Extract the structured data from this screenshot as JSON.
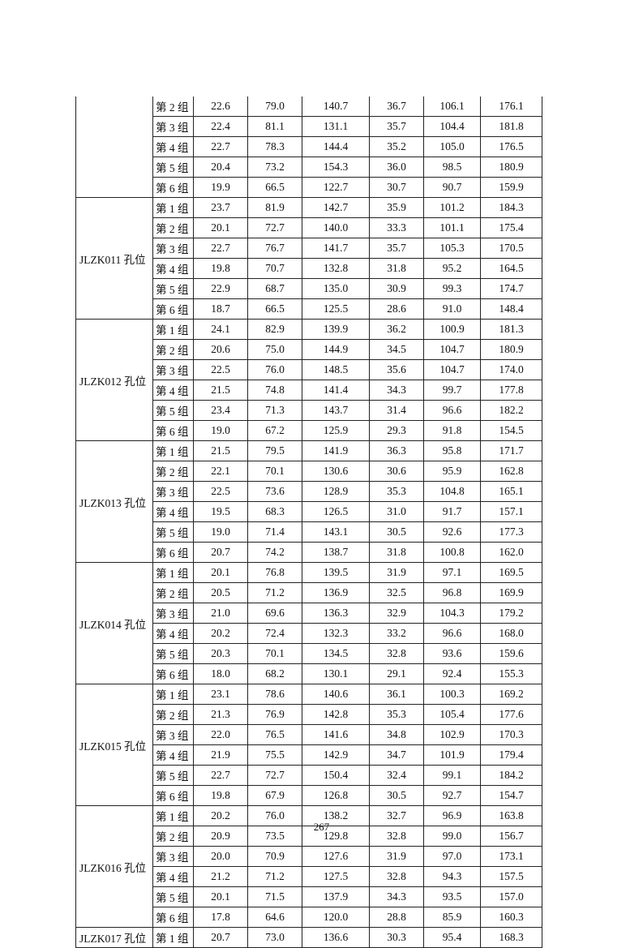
{
  "columns_visible": false,
  "groups": [
    {
      "hole": "",
      "rows": [
        [
          "第 2 组",
          "22.6",
          "79.0",
          "140.7",
          "36.7",
          "106.1",
          "176.1"
        ],
        [
          "第 3 组",
          "22.4",
          "81.1",
          "131.1",
          "35.7",
          "104.4",
          "181.8"
        ],
        [
          "第 4 组",
          "22.7",
          "78.3",
          "144.4",
          "35.2",
          "105.0",
          "176.5"
        ],
        [
          "第 5 组",
          "20.4",
          "73.2",
          "154.3",
          "36.0",
          "98.5",
          "180.9"
        ],
        [
          "第 6 组",
          "19.9",
          "66.5",
          "122.7",
          "30.7",
          "90.7",
          "159.9"
        ]
      ]
    },
    {
      "hole": "JLZK011 孔位",
      "rows": [
        [
          "第 1 组",
          "23.7",
          "81.9",
          "142.7",
          "35.9",
          "101.2",
          "184.3"
        ],
        [
          "第 2 组",
          "20.1",
          "72.7",
          "140.0",
          "33.3",
          "101.1",
          "175.4"
        ],
        [
          "第 3 组",
          "22.7",
          "76.7",
          "141.7",
          "35.7",
          "105.3",
          "170.5"
        ],
        [
          "第 4 组",
          "19.8",
          "70.7",
          "132.8",
          "31.8",
          "95.2",
          "164.5"
        ],
        [
          "第 5 组",
          "22.9",
          "68.7",
          "135.0",
          "30.9",
          "99.3",
          "174.7"
        ],
        [
          "第 6 组",
          "18.7",
          "66.5",
          "125.5",
          "28.6",
          "91.0",
          "148.4"
        ]
      ]
    },
    {
      "hole": "JLZK012 孔位",
      "rows": [
        [
          "第 1 组",
          "24.1",
          "82.9",
          "139.9",
          "36.2",
          "100.9",
          "181.3"
        ],
        [
          "第 2 组",
          "20.6",
          "75.0",
          "144.9",
          "34.5",
          "104.7",
          "180.9"
        ],
        [
          "第 3 组",
          "22.5",
          "76.0",
          "148.5",
          "35.6",
          "104.7",
          "174.0"
        ],
        [
          "第 4 组",
          "21.5",
          "74.8",
          "141.4",
          "34.3",
          "99.7",
          "177.8"
        ],
        [
          "第 5 组",
          "23.4",
          "71.3",
          "143.7",
          "31.4",
          "96.6",
          "182.2"
        ],
        [
          "第 6 组",
          "19.0",
          "67.2",
          "125.9",
          "29.3",
          "91.8",
          "154.5"
        ]
      ]
    },
    {
      "hole": "JLZK013 孔位",
      "rows": [
        [
          "第 1 组",
          "21.5",
          "79.5",
          "141.9",
          "36.3",
          "95.8",
          "171.7"
        ],
        [
          "第 2 组",
          "22.1",
          "70.1",
          "130.6",
          "30.6",
          "95.9",
          "162.8"
        ],
        [
          "第 3 组",
          "22.5",
          "73.6",
          "128.9",
          "35.3",
          "104.8",
          "165.1"
        ],
        [
          "第 4 组",
          "19.5",
          "68.3",
          "126.5",
          "31.0",
          "91.7",
          "157.1"
        ],
        [
          "第 5 组",
          "19.0",
          "71.4",
          "143.1",
          "30.5",
          "92.6",
          "177.3"
        ],
        [
          "第 6 组",
          "20.7",
          "74.2",
          "138.7",
          "31.8",
          "100.8",
          "162.0"
        ]
      ]
    },
    {
      "hole": "JLZK014 孔位",
      "rows": [
        [
          "第 1 组",
          "20.1",
          "76.8",
          "139.5",
          "31.9",
          "97.1",
          "169.5"
        ],
        [
          "第 2 组",
          "20.5",
          "71.2",
          "136.9",
          "32.5",
          "96.8",
          "169.9"
        ],
        [
          "第 3 组",
          "21.0",
          "69.6",
          "136.3",
          "32.9",
          "104.3",
          "179.2"
        ],
        [
          "第 4 组",
          "20.2",
          "72.4",
          "132.3",
          "33.2",
          "96.6",
          "168.0"
        ],
        [
          "第 5 组",
          "20.3",
          "70.1",
          "134.5",
          "32.8",
          "93.6",
          "159.6"
        ],
        [
          "第 6 组",
          "18.0",
          "68.2",
          "130.1",
          "29.1",
          "92.4",
          "155.3"
        ]
      ]
    },
    {
      "hole": "JLZK015 孔位",
      "rows": [
        [
          "第 1 组",
          "23.1",
          "78.6",
          "140.6",
          "36.1",
          "100.3",
          "169.2"
        ],
        [
          "第 2 组",
          "21.3",
          "76.9",
          "142.8",
          "35.3",
          "105.4",
          "177.6"
        ],
        [
          "第 3 组",
          "22.0",
          "76.5",
          "141.6",
          "34.8",
          "102.9",
          "170.3"
        ],
        [
          "第 4 组",
          "21.9",
          "75.5",
          "142.9",
          "34.7",
          "101.9",
          "179.4"
        ],
        [
          "第 5 组",
          "22.7",
          "72.7",
          "150.4",
          "32.4",
          "99.1",
          "184.2"
        ],
        [
          "第 6 组",
          "19.8",
          "67.9",
          "126.8",
          "30.5",
          "92.7",
          "154.7"
        ]
      ]
    },
    {
      "hole": "JLZK016 孔位",
      "rows": [
        [
          "第 1 组",
          "20.2",
          "76.0",
          "138.2",
          "32.7",
          "96.9",
          "163.8"
        ],
        [
          "第 2 组",
          "20.9",
          "73.5",
          "129.8",
          "32.8",
          "99.0",
          "156.7"
        ],
        [
          "第 3 组",
          "20.0",
          "70.9",
          "127.6",
          "31.9",
          "97.0",
          "173.1"
        ],
        [
          "第 4 组",
          "21.2",
          "71.2",
          "127.5",
          "32.8",
          "94.3",
          "157.5"
        ],
        [
          "第 5 组",
          "20.1",
          "71.5",
          "137.9",
          "34.3",
          "93.5",
          "157.0"
        ],
        [
          "第 6 组",
          "17.8",
          "64.6",
          "120.0",
          "28.8",
          "85.9",
          "160.3"
        ]
      ]
    },
    {
      "hole": "JLZK017 孔位",
      "rows": [
        [
          "第 1 组",
          "20.7",
          "73.0",
          "136.6",
          "30.3",
          "95.4",
          "168.3"
        ]
      ]
    }
  ],
  "page_number": "267"
}
